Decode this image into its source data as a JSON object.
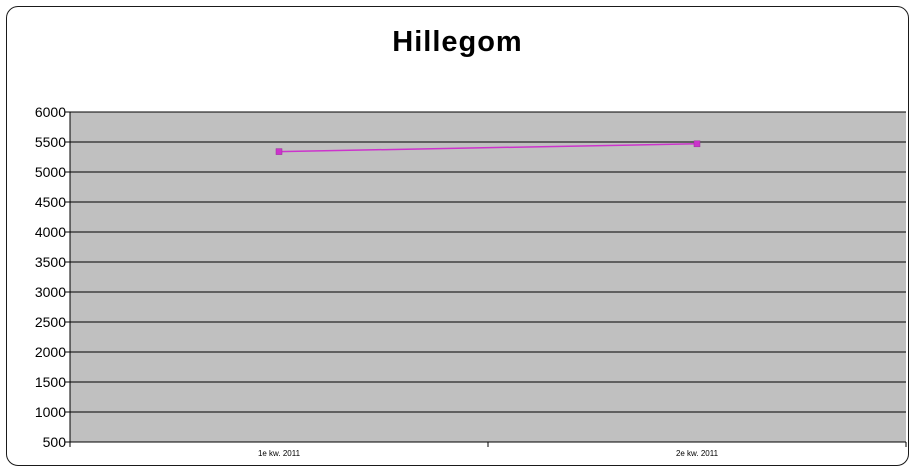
{
  "chart_data": {
    "type": "line",
    "title": "Hillegom",
    "xlabel": "",
    "ylabel": "",
    "categories": [
      "1e kw. 2011",
      "2e kw. 2011"
    ],
    "series": [
      {
        "values": [
          5340,
          5470
        ],
        "color": "#cc33cc",
        "marker": "square"
      }
    ],
    "ylim": [
      500,
      6000
    ],
    "yticks": [
      "6000",
      "5500",
      "5000",
      "4500",
      "4000",
      "3500",
      "3000",
      "2500",
      "2000",
      "1500",
      "1000",
      "500"
    ],
    "grid": true,
    "legend": "none",
    "plot_background": "#c0c0c0",
    "gridline_color": "#000000"
  }
}
